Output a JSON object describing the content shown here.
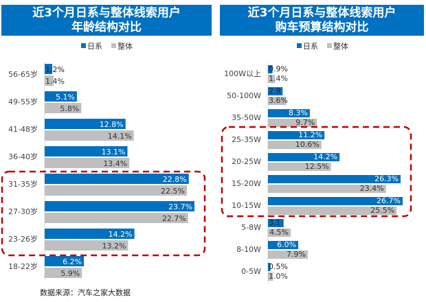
{
  "colors": {
    "japanese": "#0070C0",
    "overall": "#BFBFBF",
    "highlight": "#C00000"
  },
  "source": "数据来源：汽车之家大数据",
  "chart_data": [
    {
      "type": "bar",
      "orientation": "horizontal",
      "title": "近3个月日系与整体线索用户年龄结构对比",
      "legend": "top",
      "categories": [
        "56-65岁",
        "49-55岁",
        "41-48岁",
        "36-40岁",
        "31-35岁",
        "27-30岁",
        "23-26岁",
        "18-22岁"
      ],
      "series": [
        {
          "name": "日系",
          "values": [
            1.2,
            5.1,
            12.8,
            13.1,
            22.8,
            23.7,
            14.2,
            6.2
          ],
          "labels": [
            "1.2%",
            "5.1%",
            "12.8%",
            "13.1%",
            "22.8%",
            "23.7%",
            "14.2%",
            "6.2%"
          ]
        },
        {
          "name": "整体",
          "values": [
            1.4,
            5.8,
            14.1,
            13.4,
            22.5,
            22.7,
            13.2,
            5.9
          ],
          "labels": [
            "1.4%",
            "5.8%",
            "14.1%",
            "13.4%",
            "22.5%",
            "22.7%",
            "13.2%",
            "5.9%"
          ]
        }
      ],
      "highlighted": [
        "31-35岁",
        "27-30岁",
        "23-26岁"
      ]
    },
    {
      "type": "bar",
      "orientation": "horizontal",
      "title": "近3个月日系与整体线索用户购车预算结构对比",
      "legend": "top",
      "categories": [
        "100W以上",
        "50-100W",
        "35-50W",
        "25-35W",
        "20-25W",
        "15-20W",
        "10-15W",
        "5-8W",
        "8-10W",
        "0-5W"
      ],
      "series": [
        {
          "name": "日系",
          "values": [
            0.9,
            2.9,
            8.3,
            11.2,
            14.2,
            26.3,
            26.7,
            3.1,
            6.0,
            0.5
          ],
          "labels": [
            "0.9%",
            "2.9",
            "8.3%",
            "11.2%",
            "14.2%",
            "26.3%",
            "26.7%",
            "3.1",
            "6.0%",
            "0.5%"
          ]
        },
        {
          "name": "整体",
          "values": [
            1.4,
            3.6,
            9.7,
            10.6,
            12.5,
            23.4,
            25.5,
            4.5,
            7.9,
            1.0
          ],
          "labels": [
            "1.4%",
            "3.6%",
            "9.7%",
            "10.6%",
            "12.5%",
            "23.4%",
            "25.5%",
            "4.5%",
            "7.9%",
            "1.0%"
          ]
        }
      ],
      "highlighted": [
        "25-35W",
        "20-25W",
        "15-20W",
        "10-15W"
      ]
    }
  ],
  "titles": [
    {
      "line1": "近3个月日系与整体线索用户",
      "line2": "年龄结构对比"
    },
    {
      "line1": "近3个月日系与整体线索用户",
      "line2": "购车预算结构对比"
    }
  ]
}
